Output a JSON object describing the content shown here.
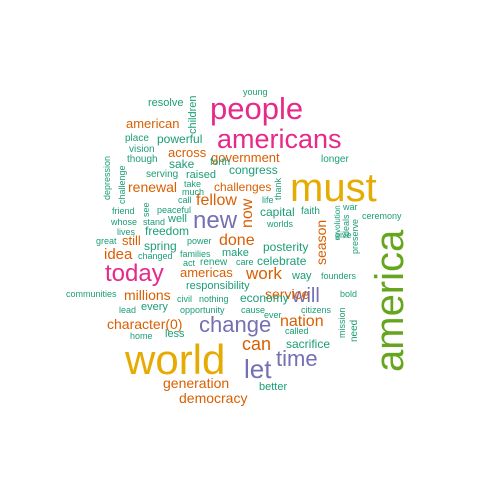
{
  "colors": {
    "teal": "#1b9e77",
    "orange": "#d95f02",
    "purple": "#7570b3",
    "magenta": "#e7298a",
    "green": "#66a61e",
    "gold": "#e6ab02",
    "background": "#ffffff"
  },
  "words": [
    {
      "text": "world",
      "color": "gold"
    },
    {
      "text": "america",
      "color": "green"
    },
    {
      "text": "must",
      "color": "gold"
    },
    {
      "text": "people",
      "color": "magenta"
    },
    {
      "text": "americans",
      "color": "magenta"
    },
    {
      "text": "today",
      "color": "magenta"
    },
    {
      "text": "new",
      "color": "purple"
    },
    {
      "text": "change",
      "color": "purple"
    },
    {
      "text": "let",
      "color": "purple"
    },
    {
      "text": "time",
      "color": "purple"
    },
    {
      "text": "will",
      "color": "purple"
    },
    {
      "text": "can",
      "color": "orange"
    },
    {
      "text": "work",
      "color": "orange"
    },
    {
      "text": "nation",
      "color": "orange"
    },
    {
      "text": "fellow",
      "color": "orange"
    },
    {
      "text": "done",
      "color": "orange"
    },
    {
      "text": "idea",
      "color": "orange"
    },
    {
      "text": "renewal",
      "color": "orange"
    },
    {
      "text": "american",
      "color": "orange"
    },
    {
      "text": "government",
      "color": "orange"
    },
    {
      "text": "across",
      "color": "orange"
    },
    {
      "text": "now",
      "color": "orange"
    },
    {
      "text": "service",
      "color": "orange"
    },
    {
      "text": "season",
      "color": "orange"
    },
    {
      "text": "millions",
      "color": "orange"
    },
    {
      "text": "americas",
      "color": "orange"
    },
    {
      "text": "character(0)",
      "color": "orange"
    },
    {
      "text": "generation",
      "color": "orange"
    },
    {
      "text": "democracy",
      "color": "orange"
    },
    {
      "text": "challenges",
      "color": "orange"
    },
    {
      "text": "still",
      "color": "orange"
    },
    {
      "text": "resolve",
      "color": "teal"
    },
    {
      "text": "children",
      "color": "teal"
    },
    {
      "text": "young",
      "color": "teal"
    },
    {
      "text": "place",
      "color": "teal"
    },
    {
      "text": "powerful",
      "color": "teal"
    },
    {
      "text": "vision",
      "color": "teal"
    },
    {
      "text": "though",
      "color": "teal"
    },
    {
      "text": "sake",
      "color": "teal"
    },
    {
      "text": "forth",
      "color": "teal"
    },
    {
      "text": "depression",
      "color": "teal"
    },
    {
      "text": "serving",
      "color": "teal"
    },
    {
      "text": "raised",
      "color": "teal"
    },
    {
      "text": "congress",
      "color": "teal"
    },
    {
      "text": "challenge",
      "color": "teal"
    },
    {
      "text": "take",
      "color": "teal"
    },
    {
      "text": "much",
      "color": "teal"
    },
    {
      "text": "call",
      "color": "teal"
    },
    {
      "text": "peaceful",
      "color": "teal"
    },
    {
      "text": "longer",
      "color": "teal"
    },
    {
      "text": "thank",
      "color": "teal"
    },
    {
      "text": "life",
      "color": "teal"
    },
    {
      "text": "friend",
      "color": "teal"
    },
    {
      "text": "see",
      "color": "teal"
    },
    {
      "text": "whose",
      "color": "teal"
    },
    {
      "text": "stand",
      "color": "teal"
    },
    {
      "text": "well",
      "color": "teal"
    },
    {
      "text": "lives",
      "color": "teal"
    },
    {
      "text": "freedom",
      "color": "teal"
    },
    {
      "text": "capital",
      "color": "teal"
    },
    {
      "text": "faith",
      "color": "teal"
    },
    {
      "text": "war",
      "color": "teal"
    },
    {
      "text": "revolution",
      "color": "teal"
    },
    {
      "text": "preserve",
      "color": "teal"
    },
    {
      "text": "ceremony",
      "color": "teal"
    },
    {
      "text": "ideals",
      "color": "teal"
    },
    {
      "text": "worlds",
      "color": "teal"
    },
    {
      "text": "give",
      "color": "teal"
    },
    {
      "text": "great",
      "color": "teal"
    },
    {
      "text": "spring",
      "color": "teal"
    },
    {
      "text": "posterity",
      "color": "teal"
    },
    {
      "text": "changed",
      "color": "teal"
    },
    {
      "text": "power",
      "color": "teal"
    },
    {
      "text": "make",
      "color": "teal"
    },
    {
      "text": "families",
      "color": "teal"
    },
    {
      "text": "act",
      "color": "teal"
    },
    {
      "text": "renew",
      "color": "teal"
    },
    {
      "text": "care",
      "color": "teal"
    },
    {
      "text": "celebrate",
      "color": "teal"
    },
    {
      "text": "way",
      "color": "teal"
    },
    {
      "text": "founders",
      "color": "teal"
    },
    {
      "text": "responsibility",
      "color": "teal"
    },
    {
      "text": "communities",
      "color": "teal"
    },
    {
      "text": "civil",
      "color": "teal"
    },
    {
      "text": "nothing",
      "color": "teal"
    },
    {
      "text": "economy",
      "color": "teal"
    },
    {
      "text": "bold",
      "color": "teal"
    },
    {
      "text": "lead",
      "color": "teal"
    },
    {
      "text": "opportunity",
      "color": "teal"
    },
    {
      "text": "cause",
      "color": "teal"
    },
    {
      "text": "ever",
      "color": "teal"
    },
    {
      "text": "citizens",
      "color": "teal"
    },
    {
      "text": "mission",
      "color": "teal"
    },
    {
      "text": "every",
      "color": "teal"
    },
    {
      "text": "home",
      "color": "teal"
    },
    {
      "text": "less",
      "color": "teal"
    },
    {
      "text": "called",
      "color": "teal"
    },
    {
      "text": "need",
      "color": "teal"
    },
    {
      "text": "sacrifice",
      "color": "teal"
    },
    {
      "text": "better",
      "color": "teal"
    }
  ]
}
